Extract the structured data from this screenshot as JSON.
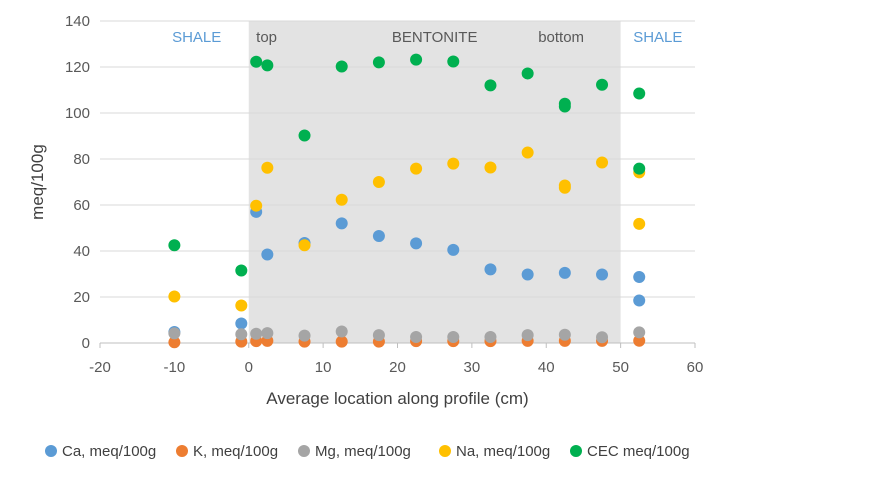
{
  "chart_data": {
    "type": "scatter",
    "xlabel": "Average location along profile (cm)",
    "ylabel": "meq/100g",
    "xlim": [
      -20,
      60
    ],
    "ylim": [
      0,
      140
    ],
    "x_ticks": [
      -20,
      -10,
      0,
      10,
      20,
      30,
      40,
      50,
      60
    ],
    "y_ticks": [
      0,
      20,
      40,
      60,
      80,
      100,
      120,
      140
    ],
    "grid": "horizontal",
    "legend_position": "bottom",
    "shaded_region": {
      "x_range": [
        0,
        50
      ],
      "color": "#e3e3e3"
    },
    "annotations": [
      {
        "text": "SHALE",
        "x": -7,
        "y": 133,
        "color": "#5b9bd5"
      },
      {
        "text": "top",
        "x": 2.4,
        "y": 133,
        "color": "#595959"
      },
      {
        "text": "BENTONITE",
        "x": 25,
        "y": 133,
        "color": "#595959"
      },
      {
        "text": "bottom",
        "x": 42,
        "y": 133,
        "color": "#595959"
      },
      {
        "text": "SHALE",
        "x": 55,
        "y": 133,
        "color": "#5b9bd5"
      }
    ],
    "series": [
      {
        "name": "Ca, meq/100g",
        "color": "#5b9bd5",
        "points": [
          [
            -10,
            4.8
          ],
          [
            -1,
            8.5
          ],
          [
            1,
            57
          ],
          [
            2.5,
            38.5
          ],
          [
            7.5,
            43.5
          ],
          [
            12.5,
            52
          ],
          [
            17.5,
            46.5
          ],
          [
            22.5,
            43.3
          ],
          [
            27.5,
            40.5
          ],
          [
            32.5,
            32
          ],
          [
            37.5,
            29.8
          ],
          [
            42.5,
            30.5
          ],
          [
            47.5,
            29.8
          ],
          [
            52.5,
            28.7
          ],
          [
            52.5,
            18.5
          ]
        ]
      },
      {
        "name": "K, meq/100g",
        "color": "#ed7d31",
        "points": [
          [
            -10,
            0.3
          ],
          [
            -1,
            0.6
          ],
          [
            1,
            0.8
          ],
          [
            2.5,
            0.9
          ],
          [
            7.5,
            0.6
          ],
          [
            12.5,
            0.6
          ],
          [
            17.5,
            0.6
          ],
          [
            22.5,
            0.8
          ],
          [
            27.5,
            0.8
          ],
          [
            32.5,
            0.8
          ],
          [
            37.5,
            0.9
          ],
          [
            42.5,
            0.9
          ],
          [
            47.5,
            0.9
          ],
          [
            52.5,
            1.0
          ]
        ]
      },
      {
        "name": "Mg, meq/100g",
        "color": "#a5a5a5",
        "points": [
          [
            -10,
            4.2
          ],
          [
            -1,
            3.8
          ],
          [
            1,
            4.0
          ],
          [
            2.5,
            4.3
          ],
          [
            7.5,
            3.2
          ],
          [
            12.5,
            5.0
          ],
          [
            17.5,
            3.4
          ],
          [
            22.5,
            2.6
          ],
          [
            27.5,
            2.6
          ],
          [
            32.5,
            2.6
          ],
          [
            37.5,
            3.4
          ],
          [
            42.5,
            3.6
          ],
          [
            47.5,
            2.5
          ],
          [
            52.5,
            4.6
          ]
        ]
      },
      {
        "name": "Na, meq/100g",
        "color": "#ffc000",
        "points": [
          [
            -10,
            20.2
          ],
          [
            -1,
            16.3
          ],
          [
            1,
            59.7
          ],
          [
            2.5,
            76.2
          ],
          [
            7.5,
            42.5
          ],
          [
            12.5,
            62.3
          ],
          [
            17.5,
            70
          ],
          [
            22.5,
            75.8
          ],
          [
            27.5,
            78
          ],
          [
            32.5,
            76.3
          ],
          [
            37.5,
            82.8
          ],
          [
            42.5,
            68.5
          ],
          [
            42.5,
            67.5
          ],
          [
            47.5,
            78.5
          ],
          [
            52.5,
            74.2
          ],
          [
            52.5,
            51.8
          ]
        ]
      },
      {
        "name": "CEC meq/100g",
        "color": "#00b050",
        "points": [
          [
            -10,
            42.5
          ],
          [
            -1,
            31.5
          ],
          [
            1,
            122.3
          ],
          [
            2.5,
            120.7
          ],
          [
            7.5,
            90.2
          ],
          [
            12.5,
            120.2
          ],
          [
            17.5,
            122
          ],
          [
            22.5,
            123.2
          ],
          [
            27.5,
            122.4
          ],
          [
            32.5,
            112
          ],
          [
            37.5,
            117.2
          ],
          [
            42.5,
            104
          ],
          [
            42.5,
            102.8
          ],
          [
            47.5,
            112.3
          ],
          [
            52.5,
            108.5
          ],
          [
            52.5,
            75.8
          ]
        ]
      }
    ]
  }
}
